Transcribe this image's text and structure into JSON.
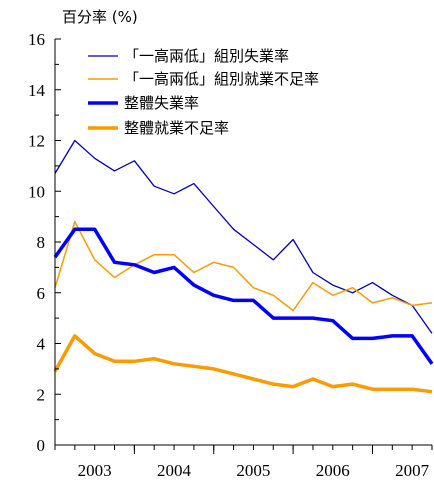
{
  "chart_data": {
    "type": "line",
    "ylabel": "百分率 (%)",
    "ylim": [
      0,
      16
    ],
    "yticks": [
      "0",
      "2",
      "4",
      "6",
      "8",
      "10",
      "12",
      "14",
      "16"
    ],
    "xlim": [
      2002.5,
      2007.25
    ],
    "xticks": [
      {
        "x": 2003,
        "label": "2003"
      },
      {
        "x": 2004,
        "label": "2004"
      },
      {
        "x": 2005,
        "label": "2005"
      },
      {
        "x": 2006,
        "label": "2006"
      },
      {
        "x": 2007,
        "label": "2007"
      }
    ],
    "legend_position": "top",
    "x": [
      2002.5,
      2002.75,
      2003.0,
      2003.25,
      2003.5,
      2003.75,
      2004.0,
      2004.25,
      2004.5,
      2004.75,
      2005.0,
      2005.25,
      2005.5,
      2005.75,
      2006.0,
      2006.25,
      2006.5,
      2006.75,
      2007.0,
      2007.25
    ],
    "series": [
      {
        "name": "「一高兩低」組別失業率",
        "color": "#0000cc",
        "width": 1.3,
        "values": [
          10.7,
          12.0,
          11.3,
          10.8,
          11.2,
          10.2,
          9.9,
          10.3,
          9.4,
          8.5,
          7.9,
          7.3,
          8.1,
          6.8,
          6.3,
          6.0,
          6.4,
          5.9,
          5.5,
          4.4
        ]
      },
      {
        "name": "「一高兩低」組別就業不足率",
        "color": "#ff9900",
        "width": 1.5,
        "values": [
          6.2,
          8.8,
          7.3,
          6.6,
          7.1,
          7.5,
          7.5,
          6.8,
          7.2,
          7.0,
          6.2,
          5.9,
          5.3,
          6.4,
          5.9,
          6.2,
          5.6,
          5.8,
          5.5,
          5.6
        ]
      },
      {
        "name": "整體失業率",
        "color": "#0000ff",
        "width": 3.5,
        "values": [
          7.4,
          8.5,
          8.5,
          7.2,
          7.1,
          6.8,
          7.0,
          6.3,
          5.9,
          5.7,
          5.7,
          5.0,
          5.0,
          5.0,
          4.9,
          4.2,
          4.2,
          4.3,
          4.3,
          3.2
        ]
      },
      {
        "name": "整體就業不足率",
        "color": "#ff9900",
        "width": 3.5,
        "values": [
          2.9,
          4.3,
          3.6,
          3.3,
          3.3,
          3.4,
          3.2,
          3.1,
          3.0,
          2.8,
          2.6,
          2.4,
          2.3,
          2.6,
          2.3,
          2.4,
          2.2,
          2.2,
          2.2,
          2.1
        ]
      }
    ]
  }
}
